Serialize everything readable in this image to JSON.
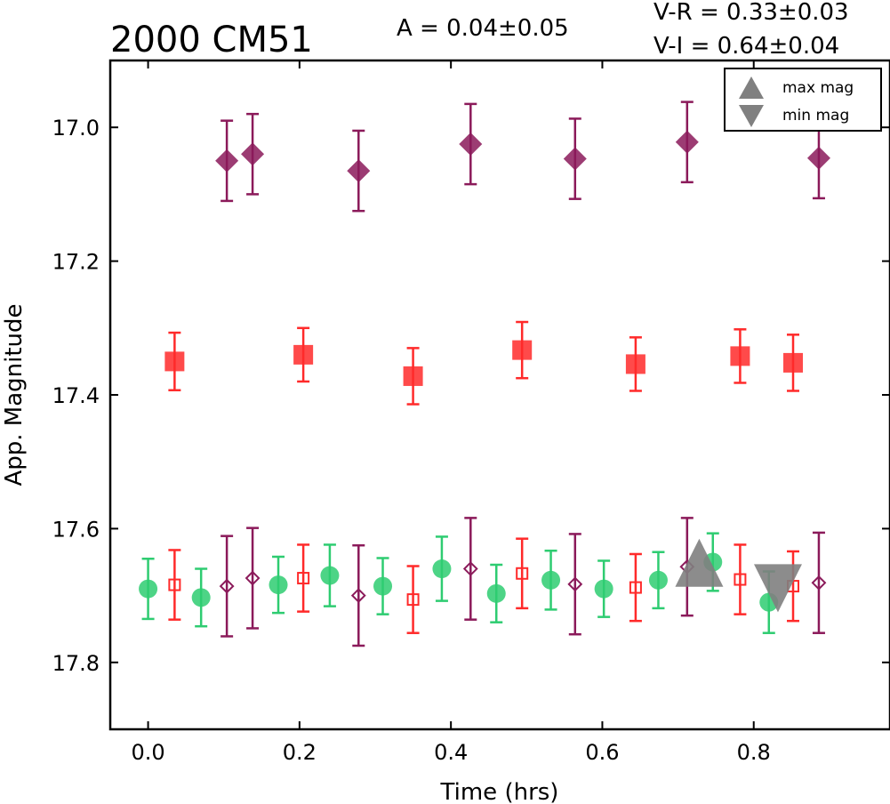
{
  "chart_data": {
    "type": "scatter",
    "title": "2000 CM51",
    "annotations": {
      "amplitude": "A  = 0.04±0.05",
      "v_minus_r": "V-R = 0.33±0.03",
      "v_minus_i": "V-I  = 0.64±0.04"
    },
    "xlabel": "Time (hrs)",
    "ylabel": "App. Magnitude",
    "xlim": [
      -0.05,
      0.98
    ],
    "ylim": [
      17.9,
      16.9
    ],
    "y_inverted": true,
    "xticks": [
      0.0,
      0.2,
      0.4,
      0.6,
      0.8
    ],
    "xtick_labels": [
      "0.0",
      "0.2",
      "0.4",
      "0.6",
      "0.8"
    ],
    "yticks": [
      17.0,
      17.2,
      17.4,
      17.6,
      17.8
    ],
    "ytick_labels": [
      "17.0",
      "17.2",
      "17.4",
      "17.6",
      "17.8"
    ],
    "grid": false,
    "legend_position": "top-right",
    "legend": [
      {
        "label": "max mag",
        "marker": "triangle-up",
        "color": "#808080"
      },
      {
        "label": "min mag",
        "marker": "triangle-down",
        "color": "#808080"
      }
    ],
    "series": [
      {
        "marker": "diamond-filled",
        "color": "#8b1a5a",
        "x": [
          0.104,
          0.138,
          0.278,
          0.426,
          0.564,
          0.712,
          0.886
        ],
        "y": [
          17.05,
          17.04,
          17.065,
          17.025,
          17.047,
          17.022,
          17.046
        ],
        "err": [
          0.06,
          0.06,
          0.06,
          0.06,
          0.06,
          0.06,
          0.06
        ]
      },
      {
        "marker": "square-filled",
        "color": "#ff2a2a",
        "x": [
          0.035,
          0.205,
          0.35,
          0.494,
          0.644,
          0.782,
          0.852
        ],
        "y": [
          17.35,
          17.34,
          17.372,
          17.333,
          17.354,
          17.342,
          17.352
        ],
        "err": [
          0.043,
          0.04,
          0.042,
          0.042,
          0.04,
          0.04,
          0.042
        ]
      },
      {
        "marker": "circle-filled",
        "color": "#2ecc71",
        "x": [
          0.0,
          0.07,
          0.172,
          0.24,
          0.31,
          0.388,
          0.46,
          0.532,
          0.602,
          0.674,
          0.746,
          0.82
        ],
        "y": [
          17.69,
          17.703,
          17.684,
          17.67,
          17.686,
          17.66,
          17.697,
          17.677,
          17.69,
          17.677,
          17.65,
          17.71
        ],
        "err": [
          0.045,
          0.043,
          0.042,
          0.046,
          0.042,
          0.048,
          0.043,
          0.044,
          0.042,
          0.042,
          0.043,
          0.046
        ]
      },
      {
        "marker": "square-open",
        "color": "#ff2a2a",
        "x": [
          0.035,
          0.205,
          0.35,
          0.494,
          0.644,
          0.782,
          0.852
        ],
        "y": [
          17.684,
          17.674,
          17.706,
          17.667,
          17.688,
          17.676,
          17.686
        ],
        "err": [
          0.052,
          0.05,
          0.05,
          0.052,
          0.05,
          0.052,
          0.052
        ]
      },
      {
        "marker": "diamond-open",
        "color": "#8b1a5a",
        "x": [
          0.104,
          0.138,
          0.278,
          0.426,
          0.564,
          0.712,
          0.886
        ],
        "y": [
          17.686,
          17.674,
          17.7,
          17.66,
          17.683,
          17.657,
          17.681
        ],
        "err": [
          0.075,
          0.075,
          0.075,
          0.076,
          0.075,
          0.073,
          0.075
        ]
      }
    ],
    "extrema": [
      {
        "label": "max mag",
        "marker": "triangle-up",
        "color": "#808080",
        "x": 0.728,
        "y": 17.655
      },
      {
        "label": "min mag",
        "marker": "triangle-down",
        "color": "#808080",
        "x": 0.832,
        "y": 17.685
      }
    ]
  }
}
